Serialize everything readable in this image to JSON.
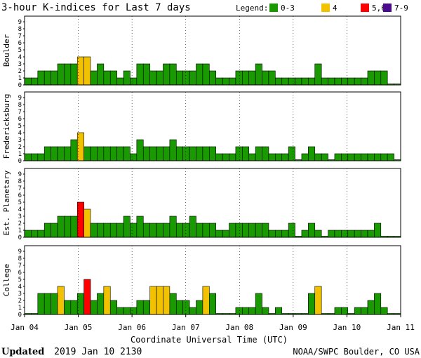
{
  "chart_data": {
    "type": "bar",
    "title": "3-hour K-indices for Last 7 days",
    "legend_label": "Legend:",
    "legend": [
      {
        "label": "0-3",
        "color": "#199a00"
      },
      {
        "label": "4",
        "color": "#f2c200"
      },
      {
        "label": "5,6",
        "color": "#ff0000"
      },
      {
        "label": "7-9",
        "color": "#4a0a8c"
      }
    ],
    "xlabel": "Coordinate Universal Time (UTC)",
    "x_ticks": [
      "Jan 04",
      "Jan 05",
      "Jan 06",
      "Jan 07",
      "Jan 08",
      "Jan 09",
      "Jan 10",
      "Jan 11"
    ],
    "y_ticks": [
      "0",
      "1",
      "2",
      "3",
      "4",
      "5",
      "6",
      "7",
      "8",
      "9"
    ],
    "ylim": [
      0,
      9
    ],
    "panels": [
      {
        "name": "Boulder",
        "values": [
          1,
          1,
          2,
          2,
          2,
          3,
          3,
          3,
          4,
          4,
          2,
          3,
          2,
          2,
          1,
          2,
          1,
          3,
          3,
          2,
          2,
          3,
          3,
          2,
          2,
          2,
          3,
          3,
          2,
          1,
          1,
          1,
          2,
          2,
          2,
          3,
          2,
          2,
          1,
          1,
          1,
          1,
          1,
          1,
          3,
          1,
          1,
          1,
          1,
          1,
          1,
          1,
          2,
          2,
          2,
          0,
          0
        ]
      },
      {
        "name": "Fredericksburg",
        "values": [
          1,
          1,
          1,
          2,
          2,
          2,
          2,
          3,
          4,
          2,
          2,
          2,
          2,
          2,
          2,
          2,
          1,
          3,
          2,
          2,
          2,
          2,
          3,
          2,
          2,
          2,
          2,
          2,
          2,
          1,
          1,
          1,
          2,
          2,
          1,
          2,
          2,
          1,
          1,
          1,
          2,
          0,
          1,
          2,
          1,
          1,
          0,
          1,
          1,
          1,
          1,
          1,
          1,
          1,
          1,
          1,
          0
        ]
      },
      {
        "name": "Est. Planetary",
        "values": [
          1,
          1,
          1,
          2,
          2,
          3,
          3,
          3,
          5,
          4,
          2,
          2,
          2,
          2,
          2,
          3,
          2,
          3,
          2,
          2,
          2,
          2,
          3,
          2,
          2,
          3,
          2,
          2,
          2,
          1,
          1,
          2,
          2,
          2,
          2,
          2,
          2,
          1,
          1,
          1,
          2,
          0,
          1,
          2,
          1,
          0,
          1,
          1,
          1,
          1,
          1,
          1,
          1,
          2,
          0,
          0,
          0
        ]
      },
      {
        "name": "College",
        "values": [
          0,
          0,
          3,
          3,
          3,
          4,
          2,
          2,
          3,
          5,
          2,
          3,
          4,
          2,
          1,
          1,
          1,
          2,
          2,
          4,
          4,
          4,
          3,
          2,
          2,
          1,
          2,
          4,
          3,
          0,
          0,
          0,
          1,
          1,
          1,
          3,
          1,
          0,
          1,
          0,
          0,
          0,
          0,
          3,
          4,
          0,
          0,
          1,
          1,
          0,
          1,
          1,
          2,
          3,
          1,
          0,
          0
        ]
      }
    ]
  },
  "footer": {
    "updated_label": "Updated",
    "updated_value": "2019 Jan 10 2130",
    "credit": "NOAA/SWPC Boulder, CO USA"
  }
}
